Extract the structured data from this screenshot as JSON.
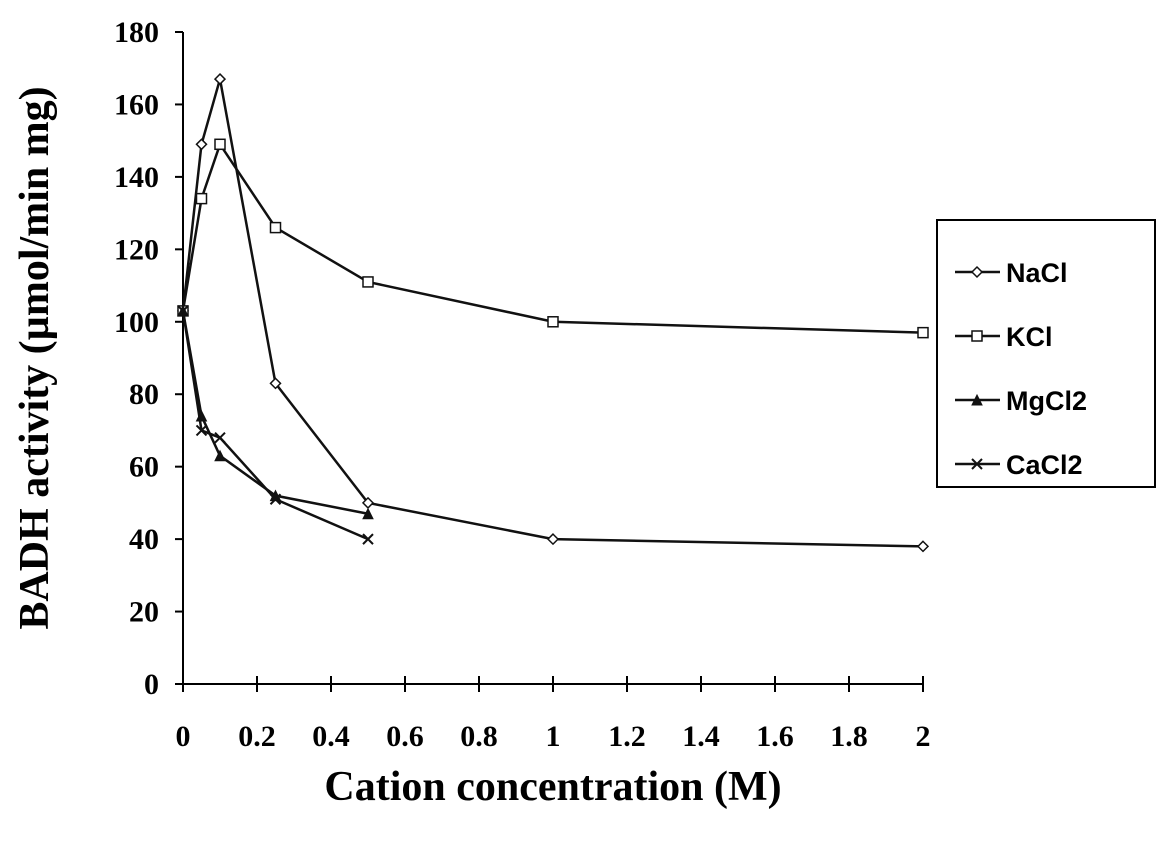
{
  "chart_data": {
    "type": "line",
    "x_label": "Cation concentration (M)",
    "y_label": "BADH activity (µmol/min mg)",
    "xlim": [
      0,
      2
    ],
    "xticks": [
      0,
      0.2,
      0.4,
      0.6,
      0.8,
      1,
      1.2,
      1.4,
      1.6,
      1.8,
      2
    ],
    "ylim": [
      0,
      180
    ],
    "yticks": [
      0,
      20,
      40,
      60,
      80,
      100,
      120,
      140,
      160,
      180
    ],
    "legend": "right",
    "series": [
      {
        "name": "NaCl",
        "color": "#111111",
        "marker": "diamond",
        "x": [
          0,
          0.05,
          0.1,
          0.25,
          0.5,
          1,
          2
        ],
        "values": [
          103,
          149,
          167,
          83,
          50,
          40,
          38
        ]
      },
      {
        "name": "KCl",
        "color": "#111111",
        "marker": "square",
        "x": [
          0,
          0.05,
          0.1,
          0.25,
          0.5,
          1,
          2
        ],
        "values": [
          103,
          134,
          149,
          126,
          111,
          100,
          97
        ]
      },
      {
        "name": "MgCl2",
        "color": "#111111",
        "marker": "triangle",
        "x": [
          0,
          0.05,
          0.1,
          0.25,
          0.5
        ],
        "values": [
          103,
          74,
          63,
          52,
          47
        ]
      },
      {
        "name": "CaCl2",
        "color": "#111111",
        "marker": "cross",
        "x": [
          0,
          0.05,
          0.1,
          0.25,
          0.5
        ],
        "values": [
          103,
          70,
          68,
          51,
          40
        ]
      }
    ]
  }
}
